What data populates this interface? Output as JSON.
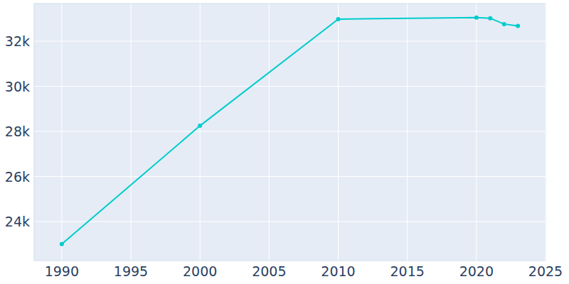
{
  "chart_data": {
    "type": "line",
    "x": [
      1990,
      2000,
      2010,
      2020,
      2021,
      2022,
      2023
    ],
    "values": [
      23000,
      28250,
      32980,
      33050,
      33020,
      32760,
      32680
    ],
    "color": "#00cccc",
    "marker": "circle",
    "xlim": [
      1988,
      2025
    ],
    "xticks": [
      1990,
      1995,
      2000,
      2005,
      2010,
      2015,
      2020,
      2025
    ],
    "ylim": [
      22270,
      33670
    ],
    "yticks": [
      {
        "value": 24000,
        "label": "24k"
      },
      {
        "value": 26000,
        "label": "26k"
      },
      {
        "value": 28000,
        "label": "28k"
      },
      {
        "value": 30000,
        "label": "30k"
      },
      {
        "value": 32000,
        "label": "32k"
      }
    ],
    "grid": true
  }
}
